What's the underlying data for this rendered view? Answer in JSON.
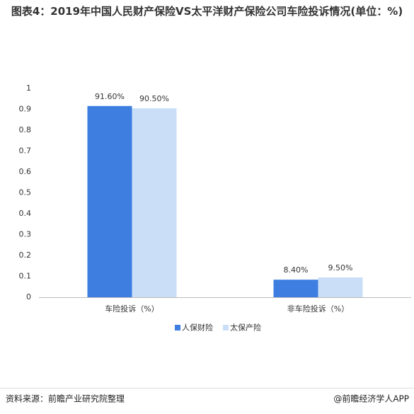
{
  "chart_data": {
    "type": "bar",
    "title": "图表4：2019年中国人民财产保险VS太平洋财产保险公司车险投诉情况(单位：%)",
    "categories": [
      "车险投诉（%）",
      "非车险投诉（%）"
    ],
    "series": [
      {
        "name": "人保财险",
        "color": "#3d7ee0",
        "values": [
          0.916,
          0.084
        ],
        "value_labels": [
          "91.60%",
          "8.40%"
        ]
      },
      {
        "name": "太保产险",
        "color": "#cadff7",
        "values": [
          0.905,
          0.095
        ],
        "value_labels": [
          "90.50%",
          "9.50%"
        ]
      }
    ],
    "ylim": [
      0,
      1
    ],
    "yticks": [
      0,
      0.1,
      0.2,
      0.3,
      0.4,
      0.5,
      0.6,
      0.7,
      0.8,
      0.9,
      1
    ],
    "grid": false
  },
  "footer": {
    "source": "资料来源：前瞻产业研究院整理",
    "brand": "@前瞻经济学人APP"
  }
}
